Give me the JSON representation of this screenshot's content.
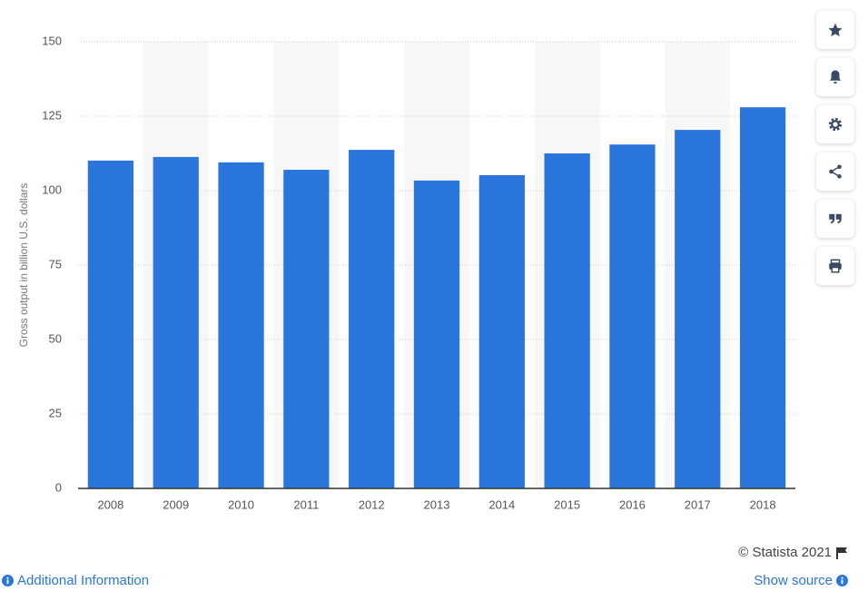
{
  "chart_data": {
    "type": "bar",
    "y_label": "Gross output in billion U.S. dollars",
    "categories": [
      "2008",
      "2009",
      "2010",
      "2011",
      "2012",
      "2013",
      "2014",
      "2015",
      "2016",
      "2017",
      "2018"
    ],
    "values": [
      110.1,
      111.3,
      109.5,
      107.0,
      113.7,
      103.4,
      105.2,
      112.5,
      115.5,
      120.4,
      128.0
    ],
    "color": "#2a76dd",
    "ylim": [
      0,
      150
    ],
    "yticks": [
      0,
      25,
      50,
      75,
      100,
      125,
      150
    ],
    "grid": true
  },
  "footer": {
    "copyright": "© Statista 2021",
    "additional_info": "Additional Information",
    "show_source": "Show source"
  }
}
